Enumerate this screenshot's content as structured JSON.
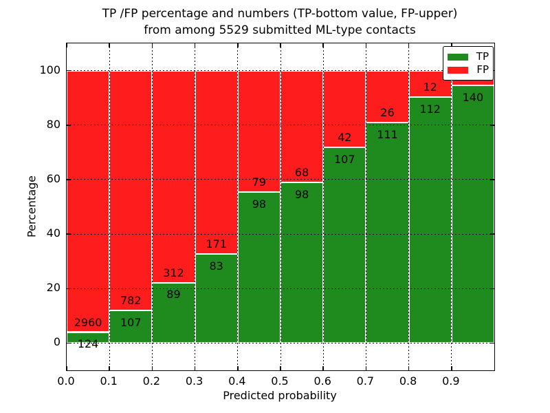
{
  "figure": {
    "title_line1": "TP /FP percentage and numbers (TP-bottom value, FP-upper)",
    "title_line2": "from among 5529 submitted ML-type contacts",
    "xlabel": "Predicted probability",
    "ylabel": "Percentage"
  },
  "legend": {
    "position": "upper-right",
    "entries": [
      {
        "label": "TP",
        "color": "#1f8b1f"
      },
      {
        "label": "FP",
        "color": "#fd1d1d"
      }
    ]
  },
  "chart_data": {
    "type": "bar",
    "subtype": "stacked-percentage-histogram",
    "title": "TP /FP percentage and numbers (TP-bottom value, FP-upper) from among 5529 submitted ML-type contacts",
    "xlabel": "Predicted probability",
    "ylabel": "Percentage",
    "xlim": [
      0.0,
      1.0
    ],
    "ylim": [
      -10,
      110
    ],
    "bin_width": 0.1,
    "bin_starts": [
      0.0,
      0.1,
      0.2,
      0.3,
      0.4,
      0.5,
      0.6,
      0.7,
      0.8,
      0.9
    ],
    "x_tick_labels": [
      "0.0",
      "0.1",
      "0.2",
      "0.3",
      "0.4",
      "0.5",
      "0.6",
      "0.7",
      "0.8",
      "0.9"
    ],
    "y_ticks": [
      0,
      20,
      40,
      60,
      80,
      100
    ],
    "y_tick_labels": [
      "0",
      "20",
      "40",
      "60",
      "80",
      "100"
    ],
    "grid": true,
    "gridline_style": "dotted",
    "bars_normalized_to": 100,
    "series": [
      {
        "name": "TP",
        "color": "#1f8b1f",
        "counts": [
          124,
          107,
          89,
          83,
          98,
          98,
          107,
          111,
          112,
          140
        ],
        "labels": [
          "124",
          "107",
          "89",
          "83",
          "98",
          "98",
          "107",
          "111",
          "112",
          "140"
        ]
      },
      {
        "name": "FP",
        "color": "#fd1d1d",
        "counts": [
          2960,
          782,
          312,
          171,
          79,
          68,
          42,
          26,
          12,
          8
        ],
        "labels": [
          "2960",
          "782",
          "312",
          "171",
          "79",
          "68",
          "42",
          "26",
          "12",
          ""
        ],
        "last_label_hidden_by_legend": true
      }
    ]
  }
}
